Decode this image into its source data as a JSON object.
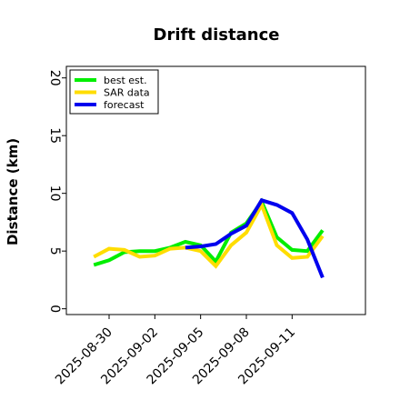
{
  "chart_data": {
    "type": "line",
    "title": "Drift distance",
    "xlabel": "",
    "ylabel": "Distance (km)",
    "ylim": [
      -0.5,
      21
    ],
    "yticks": [
      0,
      5,
      10,
      15,
      20
    ],
    "xticks": [
      "2025-08-30",
      "2025-09-02",
      "2025-09-05",
      "2025-09-08",
      "2025-09-11"
    ],
    "legend_position": "top-left",
    "grid": false,
    "series": [
      {
        "name": "best est.",
        "color": "#00ee00",
        "x": [
          "2025-08-29",
          "2025-08-30",
          "2025-08-31",
          "2025-09-01",
          "2025-09-02",
          "2025-09-03",
          "2025-09-04",
          "2025-09-05",
          "2025-09-06",
          "2025-09-07",
          "2025-09-08",
          "2025-09-09",
          "2025-09-10",
          "2025-09-11",
          "2025-09-12",
          "2025-09-13"
        ],
        "values": [
          3.8,
          4.2,
          4.9,
          5.0,
          5.0,
          5.3,
          5.8,
          5.5,
          4.1,
          6.6,
          7.4,
          9.3,
          6.2,
          5.1,
          5.0,
          6.8
        ]
      },
      {
        "name": "SAR data",
        "color": "#ffdd00",
        "x": [
          "2025-08-29",
          "2025-08-30",
          "2025-08-31",
          "2025-09-01",
          "2025-09-02",
          "2025-09-03",
          "2025-09-04",
          "2025-09-05",
          "2025-09-06",
          "2025-09-07",
          "2025-09-08",
          "2025-09-09",
          "2025-09-10",
          "2025-09-11",
          "2025-09-12",
          "2025-09-13"
        ],
        "values": [
          4.5,
          5.2,
          5.1,
          4.5,
          4.6,
          5.2,
          5.3,
          5.0,
          3.7,
          5.5,
          6.6,
          9.0,
          5.5,
          4.4,
          4.5,
          6.3
        ]
      },
      {
        "name": "forecast",
        "color": "#0000ee",
        "x": [
          "2025-09-04",
          "2025-09-05",
          "2025-09-06",
          "2025-09-07",
          "2025-09-08",
          "2025-09-09",
          "2025-09-10",
          "2025-09-11",
          "2025-09-12",
          "2025-09-13"
        ],
        "values": [
          5.3,
          5.4,
          5.6,
          6.5,
          7.2,
          9.4,
          9.0,
          8.3,
          6.0,
          2.7
        ]
      }
    ]
  }
}
